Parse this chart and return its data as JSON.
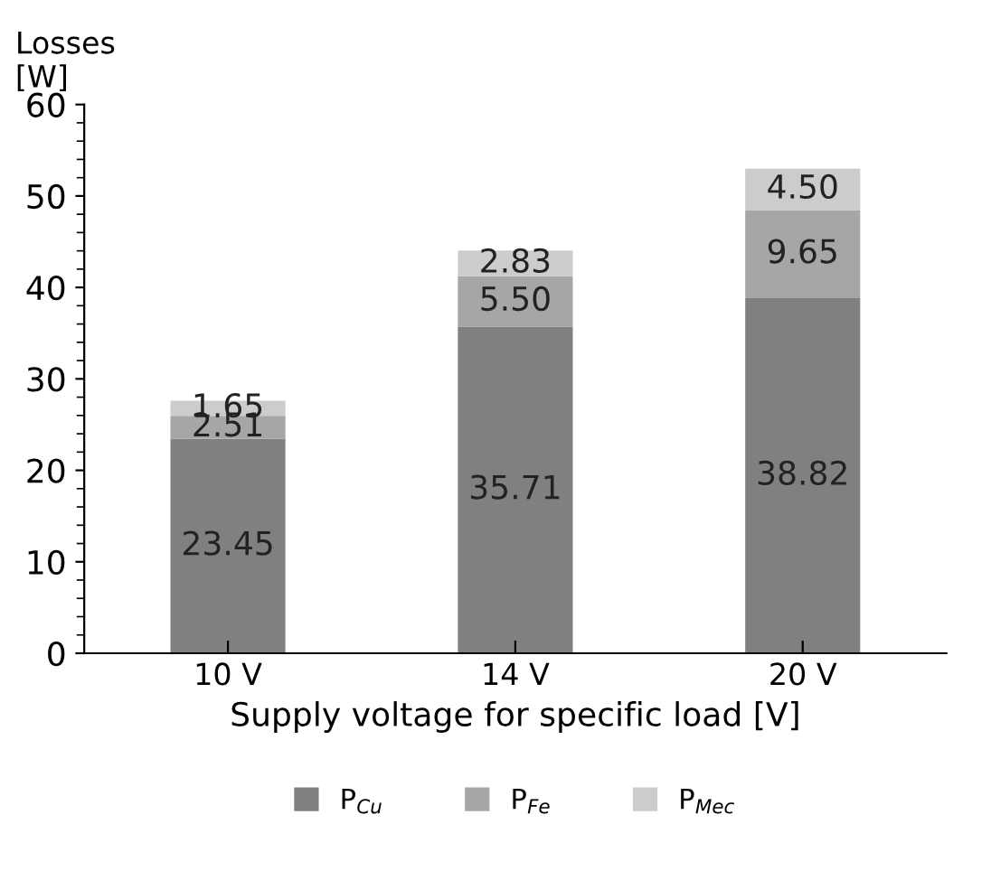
{
  "chart_data": {
    "type": "bar",
    "stacked": true,
    "xlabel": "Supply voltage for specific load [V]",
    "ylabel": "Losses\n[W]",
    "categories": [
      "10 V",
      "14 V",
      "20 V"
    ],
    "series": [
      {
        "name": "P$_{Cu}$",
        "color": "#808080",
        "values": [
          23.45,
          35.71,
          38.82
        ],
        "value_labels": [
          "23.45",
          "35.71",
          "38.82"
        ]
      },
      {
        "name": "P$_{Fe}$",
        "color": "#a6a6a6",
        "values": [
          2.51,
          5.5,
          9.65
        ],
        "value_labels": [
          "2.51",
          "5.50",
          "9.65"
        ]
      },
      {
        "name": "P$_{Mec}$",
        "color": "#cccccc",
        "values": [
          1.65,
          2.83,
          4.5
        ],
        "value_labels": [
          "1.65",
          "2.83",
          "4.50"
        ]
      }
    ],
    "ylim": [
      0,
      60
    ],
    "yticks": [
      0,
      10,
      20,
      30,
      40,
      50,
      60
    ],
    "grid": false,
    "legend": "bottom"
  }
}
